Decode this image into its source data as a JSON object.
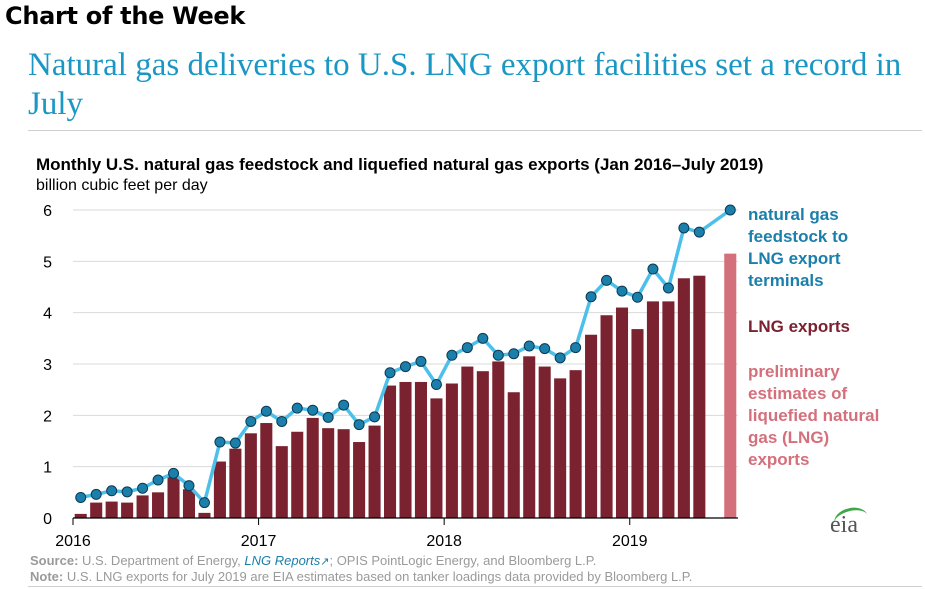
{
  "header": {
    "kicker": "Chart of the Week",
    "headline": "Natural gas deliveries to U.S. LNG export facilities set a record in July"
  },
  "chart_data": {
    "type": "bar",
    "title": "Monthly U.S. natural gas feedstock and liquefied natural gas exports (Jan 2016–July 2019)",
    "subtitle": "billion cubic feet per day",
    "ylim": [
      0,
      6
    ],
    "yticks": [
      0,
      1,
      2,
      3,
      4,
      5,
      6
    ],
    "xtick_labels": [
      "2016",
      "2017",
      "2018",
      "2019"
    ],
    "categories": [
      "2016-01",
      "2016-02",
      "2016-03",
      "2016-04",
      "2016-05",
      "2016-06",
      "2016-07",
      "2016-08",
      "2016-09",
      "2016-10",
      "2016-11",
      "2016-12",
      "2017-01",
      "2017-02",
      "2017-03",
      "2017-04",
      "2017-05",
      "2017-06",
      "2017-07",
      "2017-08",
      "2017-09",
      "2017-10",
      "2017-11",
      "2017-12",
      "2018-01",
      "2018-02",
      "2018-03",
      "2018-04",
      "2018-05",
      "2018-06",
      "2018-07",
      "2018-08",
      "2018-09",
      "2018-10",
      "2018-11",
      "2018-12",
      "2019-01",
      "2019-02",
      "2019-03",
      "2019-04",
      "2019-05",
      "2019-06",
      "2019-07"
    ],
    "series": [
      {
        "name": "LNG exports",
        "kind": "bar",
        "color": "#7b2230",
        "values": [
          0.08,
          0.3,
          0.32,
          0.3,
          0.44,
          0.5,
          0.8,
          0.56,
          0.1,
          1.1,
          1.35,
          1.65,
          1.85,
          1.4,
          1.68,
          1.95,
          1.75,
          1.73,
          1.48,
          1.8,
          2.58,
          2.65,
          2.65,
          2.33,
          2.62,
          2.95,
          2.86,
          3.05,
          2.45,
          3.15,
          2.95,
          2.72,
          2.88,
          3.57,
          3.95,
          4.1,
          3.68,
          4.22,
          4.22,
          4.67,
          4.72,
          null,
          null
        ]
      },
      {
        "name": "preliminary estimates of liquefied natural gas (LNG) exports",
        "kind": "bar",
        "color": "#d4707c",
        "values": [
          null,
          null,
          null,
          null,
          null,
          null,
          null,
          null,
          null,
          null,
          null,
          null,
          null,
          null,
          null,
          null,
          null,
          null,
          null,
          null,
          null,
          null,
          null,
          null,
          null,
          null,
          null,
          null,
          null,
          null,
          null,
          null,
          null,
          null,
          null,
          null,
          null,
          null,
          null,
          null,
          null,
          null,
          5.15
        ]
      },
      {
        "name": "natural gas feedstock to LNG export terminals",
        "kind": "line",
        "color": "#4cc0ea",
        "marker_color": "#1a7fab",
        "values": [
          0.4,
          0.46,
          0.53,
          0.51,
          0.58,
          0.74,
          0.87,
          0.63,
          0.3,
          1.48,
          1.46,
          1.88,
          2.08,
          1.88,
          2.14,
          2.1,
          1.96,
          2.2,
          1.82,
          1.97,
          2.83,
          2.95,
          3.05,
          2.6,
          3.17,
          3.32,
          3.5,
          3.17,
          3.2,
          3.35,
          3.3,
          3.12,
          3.32,
          4.31,
          4.63,
          4.42,
          4.3,
          4.85,
          4.48,
          5.65,
          5.57,
          null,
          6.0
        ]
      }
    ],
    "legend_placement": "right",
    "grid": true
  },
  "legend": {
    "feedstock": "natural gas feedstock to LNG export terminals",
    "lng": "LNG exports",
    "preliminary": "preliminary estimates of liquefied natural gas (LNG) exports"
  },
  "footer": {
    "source_label": "Source:",
    "source_pre": "U.S. Department of Energy,",
    "source_link": "LNG Reports",
    "source_post": "; OPIS PointLogic Energy, and Bloomberg L.P.",
    "note_label": "Note:",
    "note_text": "U.S. LNG exports for July 2019 are EIA estimates based on tanker loadings data provided by Bloomberg L.P.",
    "logo": "eia"
  }
}
